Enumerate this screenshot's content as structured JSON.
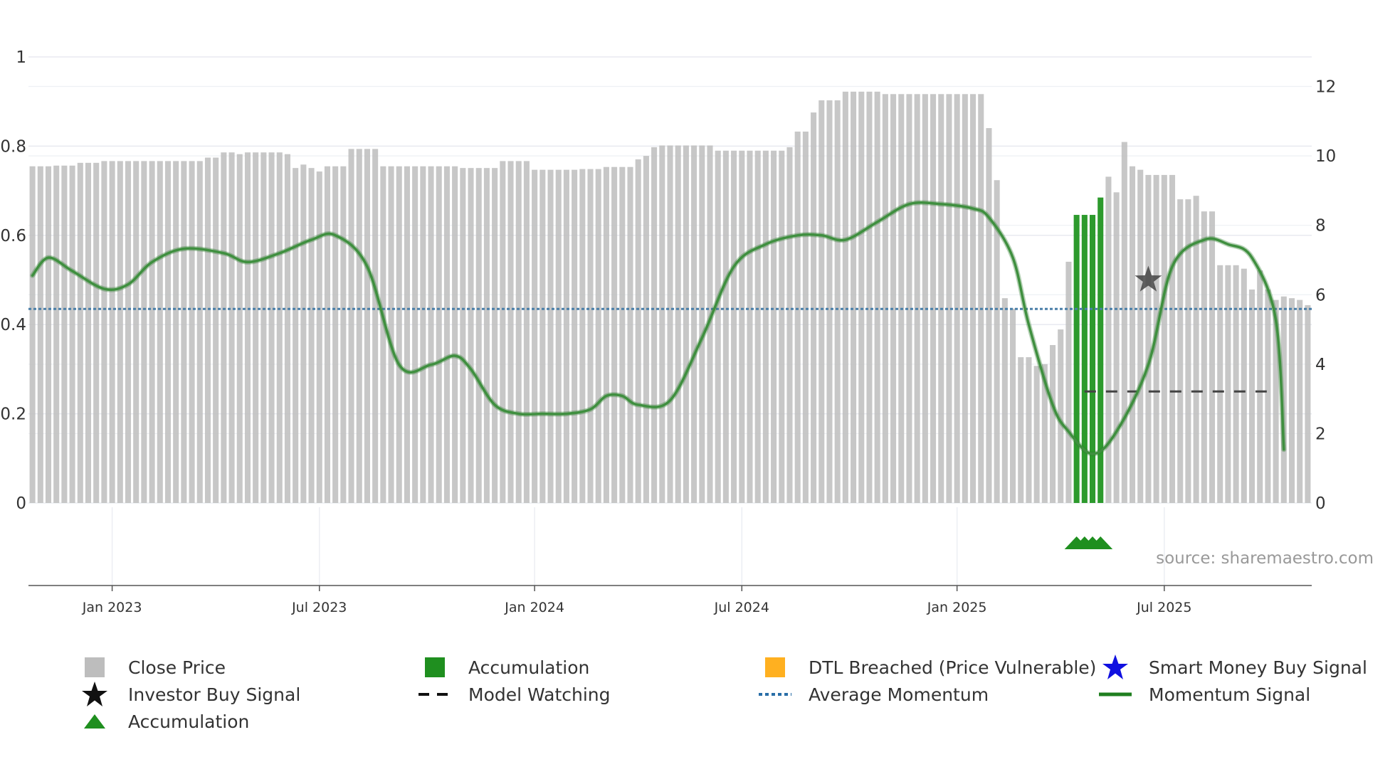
{
  "chart_data": {
    "type": "bar",
    "source": "source: sharemaestro.com",
    "x_tick_labels": [
      "Jan 2023",
      "Jul 2023",
      "Jan 2024",
      "Jul 2024",
      "Jan 2025",
      "Jul 2025"
    ],
    "left_axis": {
      "ylim": [
        0,
        1
      ],
      "tick_labels": [
        "0",
        "0.2",
        "0.4",
        "0.6",
        "0.8",
        "1"
      ]
    },
    "right_axis": {
      "ylim": [
        0,
        12.4
      ],
      "tick_labels": [
        "0",
        "2",
        "4",
        "6",
        "8",
        "10",
        "12"
      ]
    },
    "close_price": [
      9.7,
      9.7,
      9.7,
      9.72,
      9.72,
      9.72,
      9.8,
      9.8,
      9.8,
      9.85,
      9.85,
      9.85,
      9.85,
      9.85,
      9.85,
      9.85,
      9.85,
      9.85,
      9.85,
      9.85,
      9.85,
      9.85,
      9.95,
      9.95,
      10.1,
      10.1,
      10.05,
      10.1,
      10.1,
      10.1,
      10.1,
      10.1,
      10.05,
      9.65,
      9.75,
      9.65,
      9.55,
      9.7,
      9.7,
      9.7,
      10.2,
      10.2,
      10.2,
      10.2,
      9.7,
      9.7,
      9.7,
      9.7,
      9.7,
      9.7,
      9.7,
      9.7,
      9.7,
      9.7,
      9.65,
      9.65,
      9.65,
      9.65,
      9.65,
      9.85,
      9.85,
      9.85,
      9.85,
      9.6,
      9.6,
      9.6,
      9.6,
      9.6,
      9.6,
      9.62,
      9.62,
      9.62,
      9.68,
      9.68,
      9.68,
      9.68,
      9.9,
      10.0,
      10.25,
      10.3,
      10.3,
      10.3,
      10.3,
      10.3,
      10.3,
      10.3,
      10.15,
      10.15,
      10.15,
      10.15,
      10.15,
      10.15,
      10.15,
      10.15,
      10.15,
      10.25,
      10.7,
      10.7,
      11.25,
      11.6,
      11.6,
      11.6,
      11.85,
      11.85,
      11.85,
      11.85,
      11.85,
      11.78,
      11.78,
      11.78,
      11.78,
      11.78,
      11.78,
      11.78,
      11.78,
      11.78,
      11.78,
      11.78,
      11.78,
      11.78,
      10.8,
      9.3,
      5.9,
      5.6,
      4.2,
      4.2,
      3.95,
      4.0,
      4.55,
      5.0,
      6.95,
      8.3,
      8.3,
      8.3,
      8.8,
      9.4,
      8.95,
      10.4,
      9.7,
      9.6,
      9.45,
      9.45,
      9.45,
      9.45,
      8.75,
      8.75,
      8.85,
      8.4,
      8.4,
      6.85,
      6.85,
      6.85,
      6.75,
      6.15,
      6.7,
      6.15,
      5.85,
      5.95,
      5.9,
      5.85,
      5.7
    ],
    "accumulation_bar_indices": [
      131,
      132,
      133,
      134
    ],
    "momentum_signal": {
      "x": [
        0,
        2,
        5,
        9,
        12,
        15,
        19,
        24,
        27,
        31,
        35,
        38,
        42,
        46,
        50,
        53,
        55,
        58,
        61,
        64,
        67,
        70,
        72,
        74,
        76,
        80,
        84,
        88,
        92,
        96,
        99,
        102,
        106,
        110,
        114,
        118,
        120,
        123,
        125,
        128,
        130,
        133,
        136,
        140,
        143,
        147,
        150,
        153,
        156,
        157
      ],
      "y": [
        0.51,
        0.55,
        0.52,
        0.48,
        0.49,
        0.54,
        0.57,
        0.56,
        0.54,
        0.56,
        0.59,
        0.6,
        0.53,
        0.31,
        0.31,
        0.33,
        0.3,
        0.22,
        0.2,
        0.2,
        0.2,
        0.21,
        0.24,
        0.24,
        0.22,
        0.23,
        0.37,
        0.53,
        0.58,
        0.6,
        0.6,
        0.59,
        0.63,
        0.67,
        0.67,
        0.66,
        0.64,
        0.55,
        0.4,
        0.22,
        0.16,
        0.11,
        0.16,
        0.31,
        0.53,
        0.59,
        0.58,
        0.55,
        0.41,
        0.12
      ]
    },
    "average_momentum": 0.435,
    "model_watching": {
      "from_index": 132,
      "to_index": 155,
      "value": 0.25
    },
    "investor_buy_signal": {
      "index": 140,
      "value": 0.5
    },
    "accumulation_triangle_indices": [
      131,
      132,
      133,
      134
    ],
    "colors": {
      "close_price": "#bdbdbd",
      "accumulation": "#2d9a2d",
      "momentum": "#3f8f3f",
      "average_momentum": "#4a7fa8",
      "model_watching": "#444444",
      "dtl_breached": "#ffb020",
      "smart_money": "#1010e0",
      "triangle": "#1f8f1f"
    },
    "legend": [
      {
        "label": "Close Price",
        "symbol": "gray-square-icon"
      },
      {
        "label": "Accumulation",
        "symbol": "green-square-icon"
      },
      {
        "label": "DTL Breached (Price Vulnerable)",
        "symbol": "orange-square-icon"
      },
      {
        "label": "Smart Money Buy Signal",
        "symbol": "blue-star-icon"
      },
      {
        "label": "Investor Buy Signal",
        "symbol": "black-star-icon"
      },
      {
        "label": "Model Watching",
        "symbol": "dashed-line-icon"
      },
      {
        "label": "Average Momentum",
        "symbol": "dotted-line-icon"
      },
      {
        "label": "Momentum Signal",
        "symbol": "green-line-icon"
      },
      {
        "label": "Accumulation",
        "symbol": "green-triangle-icon"
      }
    ]
  }
}
